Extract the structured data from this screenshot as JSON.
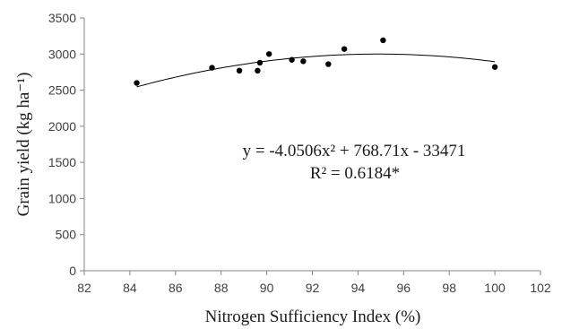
{
  "chart_data": {
    "type": "scatter",
    "title": "",
    "xlabel": "Nitrogen Sufficiency Index (%)",
    "ylabel": "Grain yield (kg ha⁻¹)",
    "xlim": [
      82,
      102
    ],
    "ylim": [
      0,
      3500
    ],
    "x_ticks": [
      82,
      84,
      86,
      88,
      90,
      92,
      94,
      96,
      98,
      100,
      102
    ],
    "y_ticks": [
      0,
      500,
      1000,
      1500,
      2000,
      2500,
      3000,
      3500
    ],
    "x_tick_labels": [
      "82",
      "84",
      "86",
      "88",
      "90",
      "92",
      "94",
      "96",
      "98",
      "100",
      "102"
    ],
    "y_tick_labels": [
      "0",
      "500",
      "1000",
      "1500",
      "2000",
      "2500",
      "3000",
      "3500"
    ],
    "grid": false,
    "legend": "none",
    "marker_color": "#000000",
    "line_color": "#000000",
    "axis_color": "#868686",
    "points": [
      {
        "x": 84.3,
        "y": 2600
      },
      {
        "x": 87.6,
        "y": 2810
      },
      {
        "x": 88.8,
        "y": 2770
      },
      {
        "x": 89.6,
        "y": 2770
      },
      {
        "x": 89.7,
        "y": 2880
      },
      {
        "x": 90.1,
        "y": 3000
      },
      {
        "x": 91.1,
        "y": 2920
      },
      {
        "x": 91.6,
        "y": 2900
      },
      {
        "x": 92.7,
        "y": 2860
      },
      {
        "x": 93.4,
        "y": 3070
      },
      {
        "x": 95.1,
        "y": 3190
      },
      {
        "x": 100.0,
        "y": 2820
      }
    ],
    "trendline": {
      "type": "polynomial",
      "coefficients": [
        -4.0506,
        768.71,
        -33471
      ],
      "x_range": [
        84.3,
        100.0
      ]
    },
    "annotations": {
      "equation": "y = -4.0506x² + 768.71x - 33471",
      "r_squared": "R² = 0.6184*"
    }
  }
}
